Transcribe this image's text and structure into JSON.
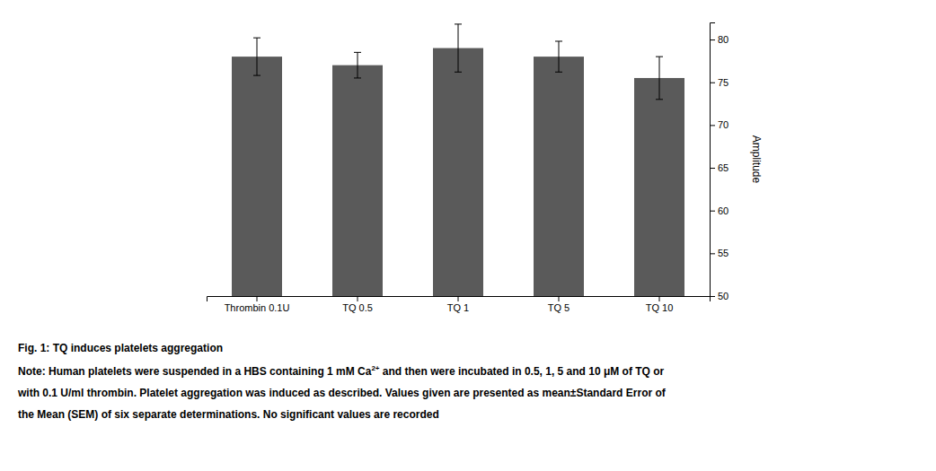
{
  "chart_data": {
    "type": "bar",
    "title": "Fig. 1: TQ induces platelets aggregation",
    "y_label": "Amplitude",
    "categories": [
      "Thrombin 0.1U",
      "TQ 0.5",
      "TQ 1",
      "TQ 5",
      "TQ 10"
    ],
    "values": [
      78.0,
      77.0,
      79.0,
      78.0,
      75.5
    ],
    "errors": [
      2.2,
      1.5,
      2.8,
      1.8,
      2.5
    ],
    "color": "#5a5a5a",
    "ylim": [
      50,
      82
    ],
    "yticks": [
      50,
      55,
      60,
      65,
      70,
      75,
      80
    ],
    "grid": false,
    "annotations": [
      "Note: Human platelets were suspended in a HBS containing 1 mM Ca",
      "2+",
      " and then were incubated in 0.5, 1, 5 and 10 μM of TQ or",
      "with 0.1 U/ml thrombin. Platelet aggregation was induced as described. Values given are presented as mean±Standard Error of",
      "the Mean (SEM) of six separate determinations. No significant values are recorded"
    ]
  }
}
